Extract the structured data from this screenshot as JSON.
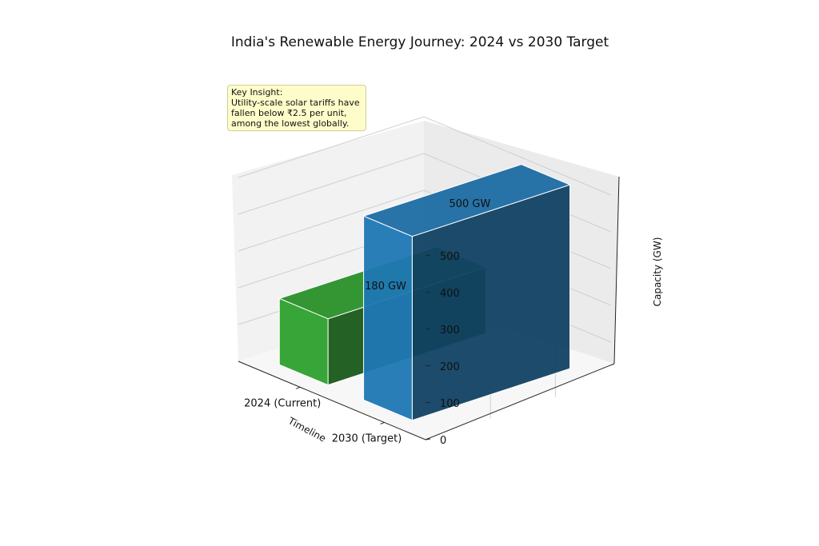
{
  "chart_data": {
    "type": "bar",
    "title": "India's Renewable Energy Journey: 2024 vs 2030 Target",
    "categories": [
      "2024 (Current)",
      "2030 (Target)"
    ],
    "values": [
      180,
      500
    ],
    "value_labels": [
      "180 GW",
      "500 GW"
    ],
    "colors": [
      "#2ca02c",
      "#1f77b4"
    ],
    "xlabel": "Timeline",
    "zlabel": "Capacity (GW)",
    "zticks": [
      0,
      100,
      200,
      300,
      400,
      500
    ],
    "zlim": [
      0,
      500
    ],
    "projection": "3d",
    "grid": true
  },
  "annotation": {
    "lines": [
      "Key Insight:",
      "Utility-scale solar tariffs have",
      "fallen below ₹2.5 per unit,",
      "among the lowest globally."
    ]
  }
}
